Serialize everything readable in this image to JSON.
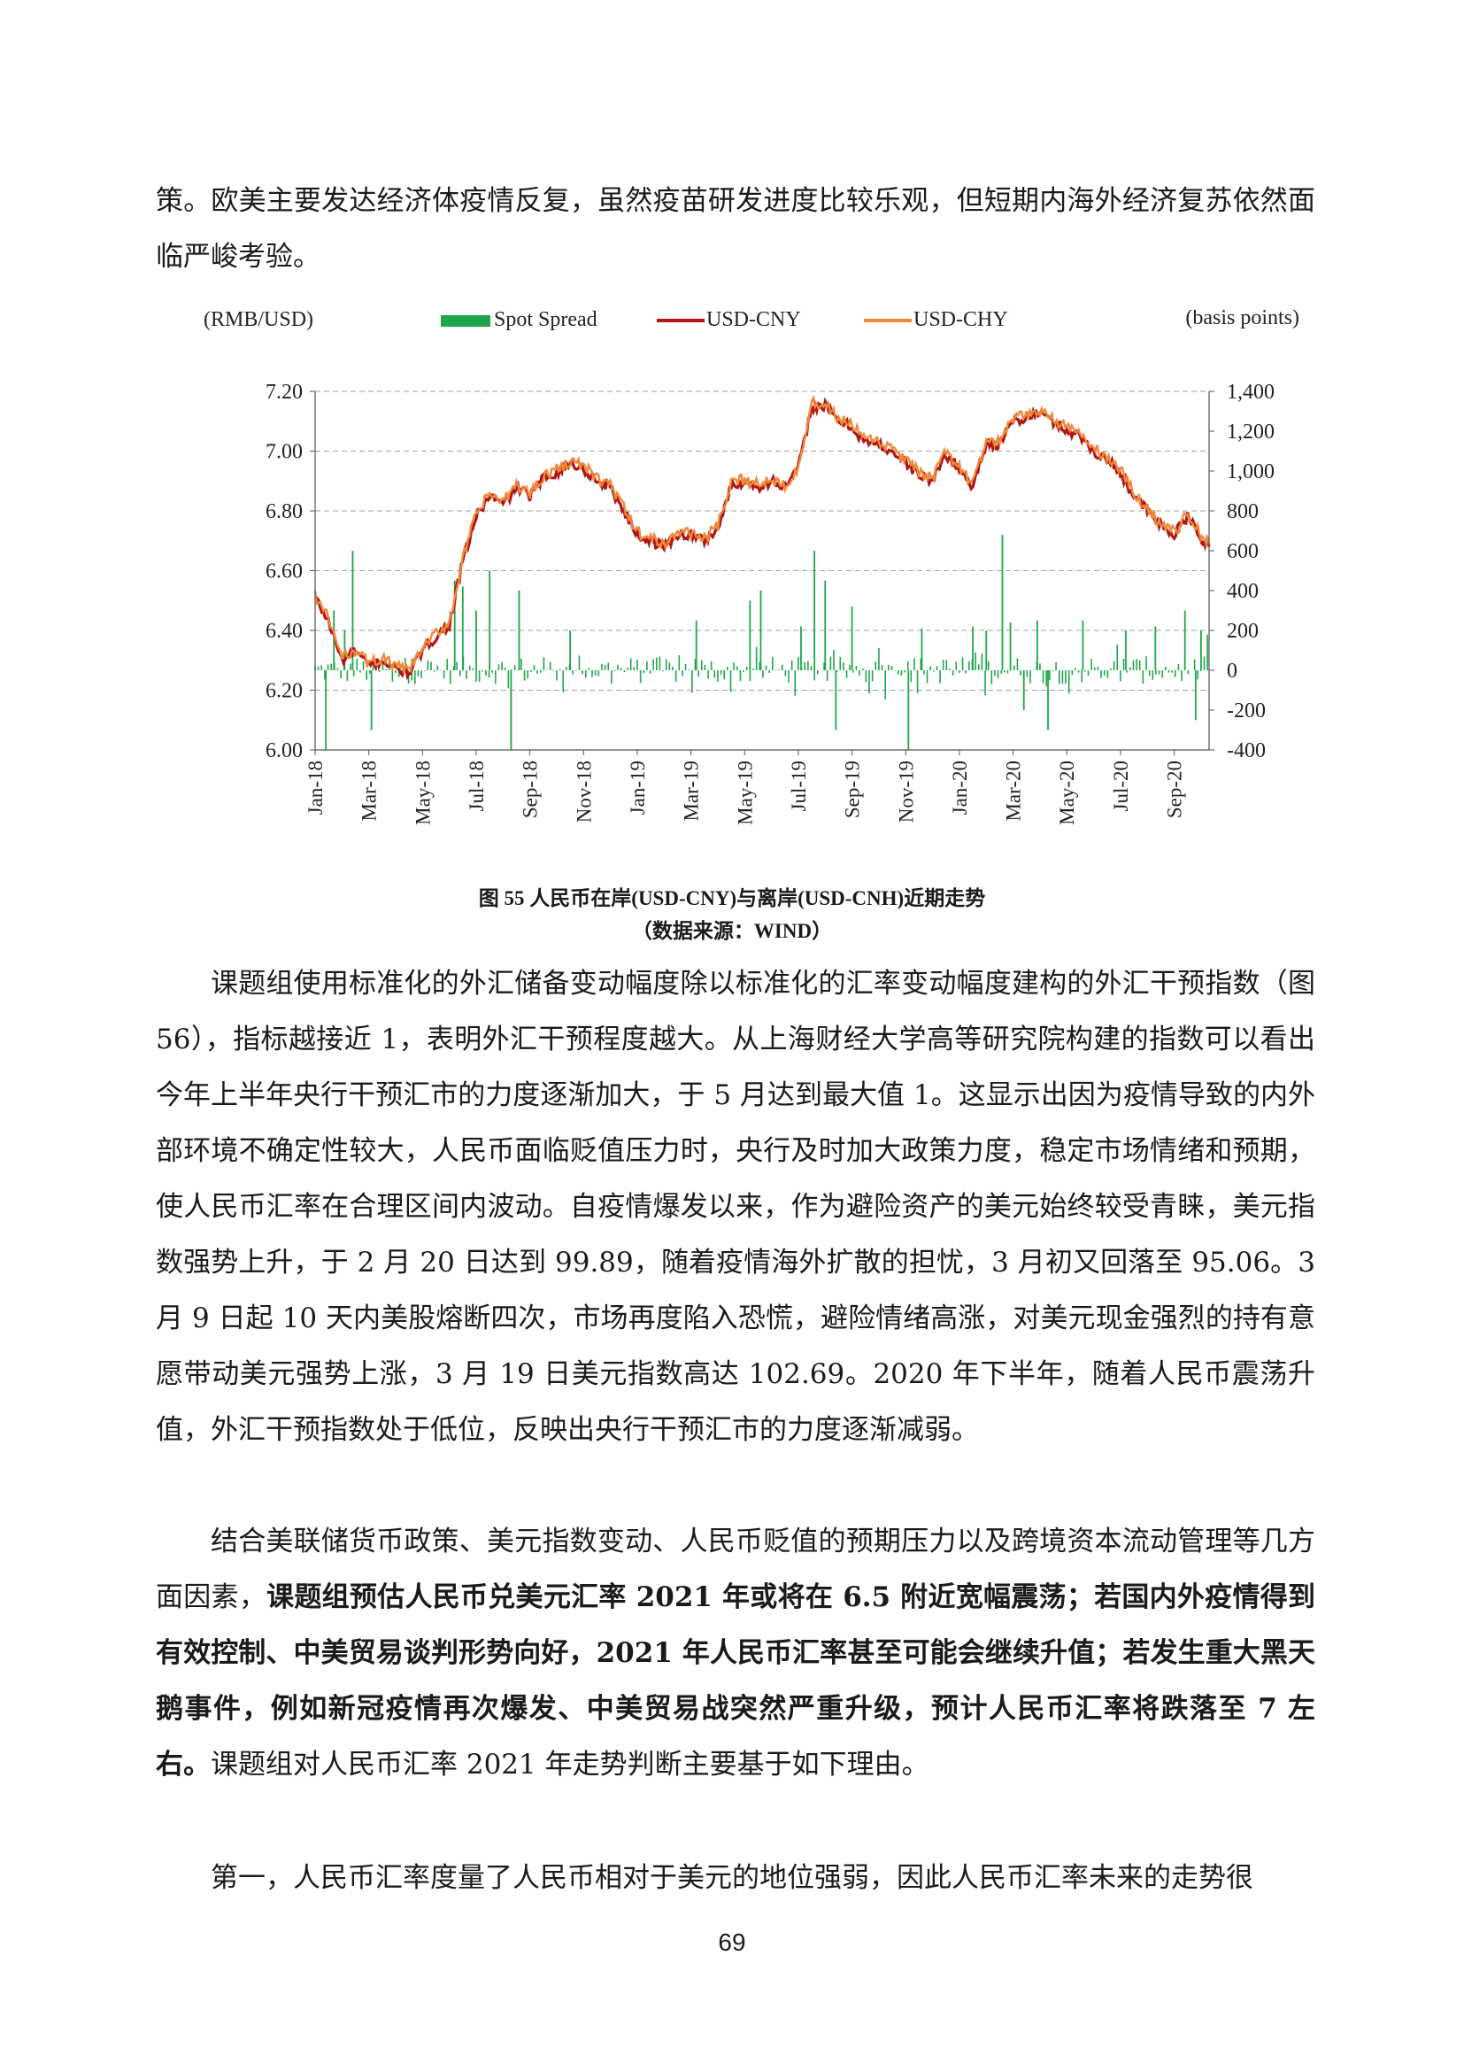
{
  "page": {
    "intro_paragraph": "策。欧美主要发达经济体疫情反复，虽然疫苗研发进度比较乐观，但短期内海外经济复苏依然面临严峻考验。",
    "figure_caption": "图 55 人民币在岸(USD-CNY)与离岸(USD-CNH)近期走势",
    "figure_source": "（数据来源：WIND）",
    "para1": "课题组使用标准化的外汇储备变动幅度除以标准化的汇率变动幅度建构的外汇干预指数（图 56），指标越接近 1，表明外汇干预程度越大。从上海财经大学高等研究院构建的指数可以看出今年上半年央行干预汇市的力度逐渐加大，于 5 月达到最大值 1。这显示出因为疫情导致的内外部环境不确定性较大，人民币面临贬值压力时，央行及时加大政策力度，稳定市场情绪和预期，使人民币汇率在合理区间内波动。自疫情爆发以来，作为避险资产的美元始终较受青睐，美元指数强势上升，于 2 月 20 日达到 99.89，随着疫情海外扩散的担忧，3 月初又回落至 95.06。3 月 9 日起 10 天内美股熔断四次，市场再度陷入恐慌，避险情绪高涨，对美元现金强烈的持有意愿带动美元强势上涨，3 月 19 日美元指数高达 102.69。2020 年下半年，随着人民币震荡升值，外汇干预指数处于低位，反映出央行干预汇市的力度逐渐减弱。",
    "para2_plain_a": "结合美联储货币政策、美元指数变动、人民币贬值的预期压力以及跨境资本流动管理等几方面因素，",
    "para2_bold": "课题组预估人民币兑美元汇率 2021 年或将在 6.5 附近宽幅震荡；若国内外疫情得到有效控制、中美贸易谈判形势向好，2021 年人民币汇率甚至可能会继续升值；若发生重大黑天鹅事件，例如新冠疫情再次爆发、中美贸易战突然严重升级，预计人民币汇率将跌落至 7 左右。",
    "para2_plain_b": "课题组对人民币汇率 2021 年走势判断主要基于如下理由。",
    "para3": "第一，人民币汇率度量了人民币相对于美元的地位强弱，因此人民币汇率未来的走势很",
    "page_number": "69"
  },
  "chart_data": {
    "type": "line",
    "left_axis_label": "(RMB/USD)",
    "right_axis_label": "(basis points)",
    "legend": [
      "Spot Spread",
      "USD-CNY",
      "USD-CHY"
    ],
    "colors": {
      "spread": "#1fa64a",
      "cny": "#b01515",
      "chy": "#f0883a",
      "grid": "#a0a0a0"
    },
    "ylim_left": [
      6.0,
      7.2
    ],
    "ylim_right": [
      -400,
      1400
    ],
    "yticks_left": [
      "7.20",
      "7.00",
      "6.80",
      "6.60",
      "6.40",
      "6.20",
      "6.00"
    ],
    "yticks_right": [
      "1,400",
      "1,200",
      "1,000",
      "800",
      "600",
      "400",
      "200",
      "0",
      "-200",
      "-400"
    ],
    "x_tick_labels": [
      "Jan-18",
      "Mar-18",
      "May-18",
      "Jul-18",
      "Sep-18",
      "Nov-18",
      "Jan-19",
      "Mar-19",
      "May-19",
      "Jul-19",
      "Sep-19",
      "Nov-19",
      "Jan-20",
      "Mar-20",
      "May-20",
      "Jul-20",
      "Sep-20"
    ],
    "x_range_months": [
      0,
      33.3
    ],
    "rate_series": {
      "months": [
        0,
        0.5,
        1,
        1.5,
        2,
        2.5,
        3,
        3.5,
        4,
        4.5,
        5,
        5.5,
        6,
        6.5,
        7,
        7.5,
        8,
        8.5,
        9,
        9.5,
        10,
        10.5,
        11,
        11.5,
        12,
        12.5,
        13,
        13.5,
        14,
        14.5,
        15,
        15.5,
        16,
        16.5,
        17,
        17.5,
        18,
        18.5,
        19,
        19.5,
        20,
        20.5,
        21,
        21.5,
        22,
        22.5,
        23,
        23.5,
        24,
        24.5,
        25,
        25.5,
        26,
        26.5,
        27,
        27.5,
        28,
        28.5,
        29,
        29.5,
        30,
        30.5,
        31,
        31.5,
        32,
        32.5,
        33,
        33.3
      ],
      "values": [
        6.51,
        6.43,
        6.3,
        6.33,
        6.28,
        6.3,
        6.27,
        6.26,
        6.33,
        6.38,
        6.42,
        6.63,
        6.78,
        6.85,
        6.82,
        6.88,
        6.85,
        6.91,
        6.93,
        6.96,
        6.94,
        6.9,
        6.88,
        6.8,
        6.72,
        6.7,
        6.68,
        6.72,
        6.72,
        6.7,
        6.74,
        6.88,
        6.9,
        6.88,
        6.9,
        6.88,
        6.94,
        7.15,
        7.15,
        7.1,
        7.08,
        7.03,
        7.02,
        7.0,
        6.96,
        6.92,
        6.9,
        6.99,
        6.94,
        6.88,
        7.03,
        7.02,
        7.1,
        7.11,
        7.13,
        7.1,
        7.07,
        7.05,
        7.0,
        6.97,
        6.93,
        6.85,
        6.8,
        6.75,
        6.72,
        6.78,
        6.71,
        6.68
      ]
    },
    "spread_peaks": [
      {
        "month": 0.4,
        "value": -400
      },
      {
        "month": 0.7,
        "value": 300
      },
      {
        "month": 1.1,
        "value": 200
      },
      {
        "month": 1.4,
        "value": 600
      },
      {
        "month": 2.1,
        "value": -300
      },
      {
        "month": 5.2,
        "value": 450
      },
      {
        "month": 5.5,
        "value": 420
      },
      {
        "month": 6.0,
        "value": 300
      },
      {
        "month": 6.5,
        "value": 500
      },
      {
        "month": 7.3,
        "value": -400
      },
      {
        "month": 7.6,
        "value": 400
      },
      {
        "month": 9.5,
        "value": 200
      },
      {
        "month": 14.2,
        "value": 250
      },
      {
        "month": 16.2,
        "value": 350
      },
      {
        "month": 16.6,
        "value": 400
      },
      {
        "month": 18.1,
        "value": 220
      },
      {
        "month": 18.6,
        "value": 600
      },
      {
        "month": 19.0,
        "value": 450
      },
      {
        "month": 19.4,
        "value": -300
      },
      {
        "month": 20.0,
        "value": 320
      },
      {
        "month": 22.1,
        "value": -400
      },
      {
        "month": 22.6,
        "value": 210
      },
      {
        "month": 24.5,
        "value": 220
      },
      {
        "month": 25.0,
        "value": 200
      },
      {
        "month": 25.6,
        "value": 680
      },
      {
        "month": 25.9,
        "value": 240
      },
      {
        "month": 26.4,
        "value": -200
      },
      {
        "month": 26.9,
        "value": 250
      },
      {
        "month": 27.3,
        "value": -300
      },
      {
        "month": 28.6,
        "value": 250
      },
      {
        "month": 30.2,
        "value": 200
      },
      {
        "month": 31.3,
        "value": 220
      },
      {
        "month": 32.4,
        "value": 300
      },
      {
        "month": 32.8,
        "value": -250
      },
      {
        "month": 33.0,
        "value": 200
      }
    ]
  }
}
